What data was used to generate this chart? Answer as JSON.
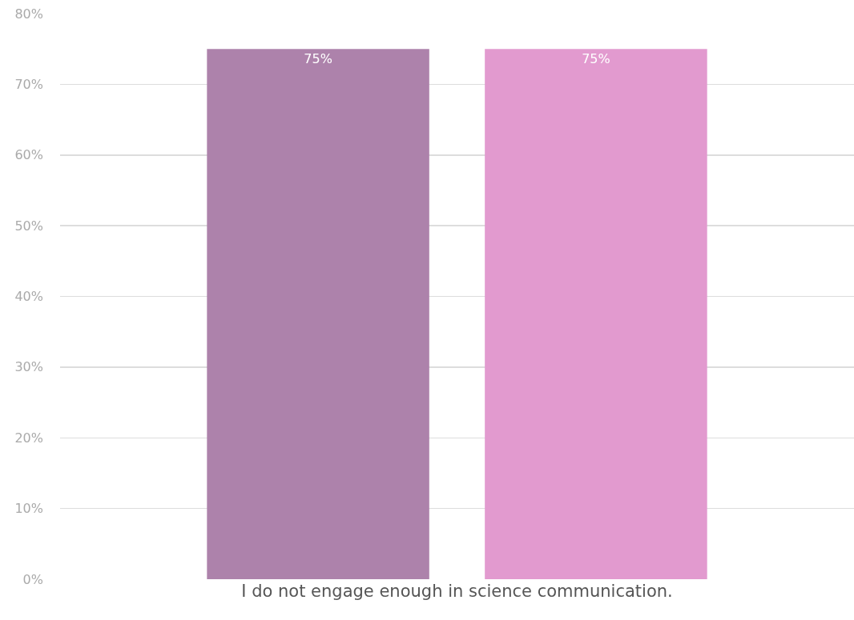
{
  "chart_data": {
    "type": "bar",
    "categories": [
      "I do not engage enough in science communication."
    ],
    "series": [
      {
        "color": "#ad82ab",
        "values": [
          75
        ],
        "value_labels": [
          "75%"
        ]
      },
      {
        "color": "#e29acf",
        "values": [
          75
        ],
        "value_labels": [
          "75%"
        ]
      }
    ],
    "ylim": [
      0,
      80
    ],
    "yticks": [
      {
        "value": 0,
        "label": "0%"
      },
      {
        "value": 10,
        "label": "10%"
      },
      {
        "value": 20,
        "label": "20%"
      },
      {
        "value": 30,
        "label": "30%"
      },
      {
        "value": 40,
        "label": "40%"
      },
      {
        "value": 50,
        "label": "50%"
      },
      {
        "value": 60,
        "label": "60%"
      },
      {
        "value": 70,
        "label": "70%"
      },
      {
        "value": 80,
        "label": "80%"
      }
    ],
    "grid": "y",
    "legend": false
  }
}
